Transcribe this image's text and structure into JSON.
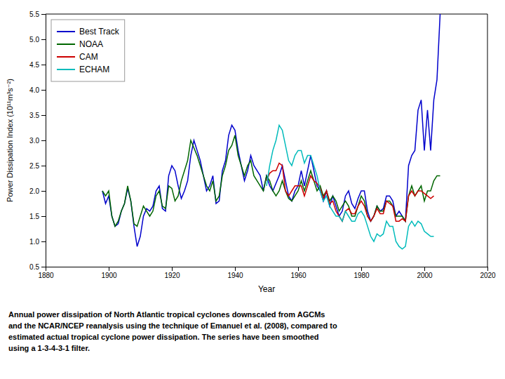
{
  "chart_data": {
    "type": "line",
    "x_label": "Year",
    "y_label": "Power Dissipation Index (10¹¹m³s⁻²)",
    "caption": [
      "Annual power dissipation of North Atlantic tropical cyclones downscaled from AGCMs",
      "and the NCAR/NCEP reanalysis using the technique of Emanuel et al. (2008), compared to",
      "estimated actual tropical cyclone power dissipation. The series have been smoothed",
      "using a 1-3-4-3-1 filter."
    ],
    "xlim": [
      1880,
      2020
    ],
    "ylim": [
      0.5,
      5.5
    ],
    "xticks": [
      1880,
      1900,
      1920,
      1940,
      1960,
      1980,
      2000,
      2020
    ],
    "yticks": [
      0.5,
      {
        "value": 1,
        "label": "1.0"
      },
      1.5,
      {
        "value": 2,
        "label": "2.0"
      },
      2.5,
      {
        "value": 3,
        "label": "3.0"
      },
      3.5,
      {
        "value": 4,
        "label": "4.0"
      },
      4.5,
      {
        "value": 5,
        "label": "5.0"
      },
      5.5
    ],
    "grid": false,
    "legend": "upper left",
    "series": [
      {
        "name": "Best Track",
        "color": "#0000CC",
        "x": [
          1898,
          1899,
          1900,
          1901,
          1902,
          1903,
          1904,
          1905,
          1906,
          1907,
          1908,
          1909,
          1910,
          1911,
          1912,
          1913,
          1914,
          1915,
          1916,
          1917,
          1918,
          1919,
          1920,
          1921,
          1922,
          1923,
          1924,
          1925,
          1926,
          1927,
          1928,
          1929,
          1930,
          1931,
          1932,
          1933,
          1934,
          1935,
          1936,
          1937,
          1938,
          1939,
          1940,
          1941,
          1942,
          1943,
          1944,
          1945,
          1946,
          1947,
          1948,
          1949,
          1950,
          1951,
          1952,
          1953,
          1954,
          1955,
          1956,
          1957,
          1958,
          1959,
          1960,
          1961,
          1962,
          1963,
          1964,
          1965,
          1966,
          1967,
          1968,
          1969,
          1970,
          1971,
          1972,
          1973,
          1974,
          1975,
          1976,
          1977,
          1978,
          1979,
          1980,
          1981,
          1982,
          1983,
          1984,
          1985,
          1986,
          1987,
          1988,
          1989,
          1990,
          1991,
          1992,
          1993,
          1994,
          1995,
          1996,
          1997,
          1998,
          1999,
          2000,
          2001,
          2002,
          2003,
          2004,
          2005
        ],
        "values": [
          2.0,
          1.75,
          1.9,
          1.5,
          1.3,
          1.35,
          1.6,
          1.75,
          2.05,
          1.8,
          1.3,
          0.9,
          1.1,
          1.5,
          1.65,
          1.6,
          1.7,
          2.0,
          2.1,
          1.65,
          1.6,
          2.3,
          2.5,
          2.4,
          2.1,
          1.85,
          2.0,
          2.2,
          2.7,
          3.0,
          2.8,
          2.6,
          2.3,
          2.0,
          2.1,
          2.3,
          1.75,
          1.8,
          2.4,
          2.6,
          3.1,
          3.3,
          3.2,
          2.8,
          2.5,
          2.2,
          2.4,
          2.7,
          2.5,
          2.4,
          2.3,
          2.0,
          2.3,
          2.1,
          2.0,
          2.15,
          2.3,
          2.5,
          2.2,
          1.9,
          1.8,
          2.0,
          2.1,
          2.4,
          2.1,
          2.4,
          2.7,
          2.4,
          2.1,
          2.0,
          1.8,
          2.0,
          1.7,
          1.9,
          1.7,
          1.5,
          1.6,
          1.9,
          2.0,
          1.75,
          1.65,
          1.85,
          2.0,
          2.0,
          1.6,
          1.4,
          1.5,
          1.7,
          1.6,
          1.65,
          1.9,
          1.9,
          1.8,
          1.5,
          1.6,
          1.5,
          1.4,
          2.5,
          2.7,
          2.8,
          3.6,
          3.8,
          2.8,
          3.6,
          2.8,
          3.8,
          4.2,
          5.5
        ]
      },
      {
        "name": "NOAA",
        "color": "#006600",
        "x": [
          1898,
          1899,
          1900,
          1901,
          1902,
          1903,
          1904,
          1905,
          1906,
          1907,
          1908,
          1909,
          1910,
          1911,
          1912,
          1913,
          1914,
          1915,
          1916,
          1917,
          1918,
          1919,
          1920,
          1921,
          1922,
          1923,
          1924,
          1925,
          1926,
          1927,
          1928,
          1929,
          1930,
          1931,
          1932,
          1933,
          1934,
          1935,
          1936,
          1937,
          1938,
          1939,
          1940,
          1941,
          1942,
          1943,
          1944,
          1945,
          1946,
          1947,
          1948,
          1949,
          1950,
          1951,
          1952,
          1953,
          1954,
          1955,
          1956,
          1957,
          1958,
          1959,
          1960,
          1961,
          1962,
          1963,
          1964,
          1965,
          1966,
          1967,
          1968,
          1969,
          1970,
          1971,
          1972,
          1973,
          1974,
          1975,
          1976,
          1977,
          1978,
          1979,
          1980,
          1981,
          1982,
          1983,
          1984,
          1985,
          1986,
          1987,
          1988,
          1989,
          1990,
          1991,
          1992,
          1993,
          1994,
          1995,
          1996,
          1997,
          1998,
          1999,
          2000,
          2001,
          2002,
          2003,
          2004,
          2005
        ],
        "values": [
          2.0,
          1.9,
          2.0,
          1.5,
          1.3,
          1.4,
          1.6,
          1.75,
          2.1,
          1.8,
          1.35,
          1.3,
          1.5,
          1.7,
          1.6,
          1.5,
          1.6,
          1.9,
          2.0,
          1.7,
          1.65,
          2.1,
          2.05,
          1.8,
          1.9,
          2.2,
          2.4,
          2.6,
          3.0,
          2.85,
          2.7,
          2.5,
          2.3,
          2.1,
          2.0,
          2.2,
          1.8,
          1.9,
          2.3,
          2.5,
          2.8,
          2.9,
          3.1,
          2.7,
          2.5,
          2.3,
          2.5,
          2.6,
          2.3,
          2.2,
          2.1,
          2.0,
          2.3,
          2.2,
          2.0,
          1.9,
          2.0,
          2.2,
          2.0,
          1.85,
          1.8,
          1.9,
          2.0,
          2.2,
          2.0,
          2.2,
          2.4,
          2.2,
          2.0,
          2.1,
          1.9,
          2.0,
          1.8,
          1.9,
          1.8,
          1.6,
          1.7,
          1.8,
          1.7,
          1.5,
          1.5,
          1.7,
          1.9,
          1.8,
          1.5,
          1.4,
          1.5,
          1.7,
          1.6,
          1.6,
          1.8,
          1.8,
          1.7,
          1.5,
          1.5,
          1.5,
          1.4,
          1.9,
          2.1,
          1.9,
          2.0,
          2.1,
          1.8,
          2.0,
          2.0,
          2.2,
          2.3,
          2.3
        ]
      },
      {
        "name": "CAM",
        "color": "#CC0000",
        "x": [
          1950,
          1951,
          1952,
          1953,
          1954,
          1955,
          1956,
          1957,
          1958,
          1959,
          1960,
          1961,
          1962,
          1963,
          1964,
          1965,
          1966,
          1967,
          1968,
          1969,
          1970,
          1971,
          1972,
          1973,
          1974,
          1975,
          1976,
          1977,
          1978,
          1979,
          1980,
          1981,
          1982,
          1983,
          1984,
          1985,
          1986,
          1987,
          1988,
          1989,
          1990,
          1991,
          1992,
          1993,
          1994,
          1995,
          1996,
          1997,
          1998,
          1999,
          2000,
          2001,
          2002,
          2003
        ],
        "values": [
          2.2,
          2.35,
          2.4,
          2.4,
          2.55,
          2.5,
          2.0,
          1.9,
          2.0,
          2.1,
          2.1,
          2.1,
          1.9,
          2.1,
          2.3,
          2.2,
          2.15,
          2.05,
          1.85,
          2.0,
          1.75,
          1.8,
          1.6,
          1.5,
          1.4,
          1.6,
          1.65,
          1.55,
          1.55,
          1.7,
          1.8,
          1.7,
          1.5,
          1.4,
          1.5,
          1.65,
          1.55,
          1.55,
          1.8,
          1.75,
          1.7,
          1.4,
          1.4,
          1.45,
          1.4,
          1.9,
          2.0,
          1.9,
          2.0,
          2.0,
          1.95,
          1.9,
          1.85,
          1.9
        ]
      },
      {
        "name": "ECHAM",
        "color": "#00BBBB",
        "x": [
          1950,
          1951,
          1952,
          1953,
          1954,
          1955,
          1956,
          1957,
          1958,
          1959,
          1960,
          1961,
          1962,
          1963,
          1964,
          1965,
          1966,
          1967,
          1968,
          1969,
          1970,
          1971,
          1972,
          1973,
          1974,
          1975,
          1976,
          1977,
          1978,
          1979,
          1980,
          1981,
          1982,
          1983,
          1984,
          1985,
          1986,
          1987,
          1988,
          1989,
          1990,
          1991,
          1992,
          1993,
          1994,
          1995,
          1996,
          1997,
          1998,
          1999,
          2000,
          2001,
          2002,
          2003
        ],
        "values": [
          2.1,
          2.5,
          2.8,
          3.0,
          3.3,
          3.2,
          2.9,
          2.6,
          2.5,
          2.7,
          2.8,
          2.8,
          2.55,
          2.7,
          2.7,
          2.5,
          2.3,
          2.0,
          1.8,
          1.9,
          1.7,
          1.6,
          1.5,
          1.5,
          1.4,
          1.6,
          1.5,
          1.4,
          1.4,
          1.55,
          1.6,
          1.5,
          1.3,
          1.1,
          1.0,
          1.15,
          1.1,
          1.15,
          1.4,
          1.3,
          1.3,
          1.0,
          0.9,
          0.85,
          0.9,
          1.3,
          1.4,
          1.3,
          1.4,
          1.35,
          1.2,
          1.15,
          1.1,
          1.1
        ]
      }
    ]
  }
}
